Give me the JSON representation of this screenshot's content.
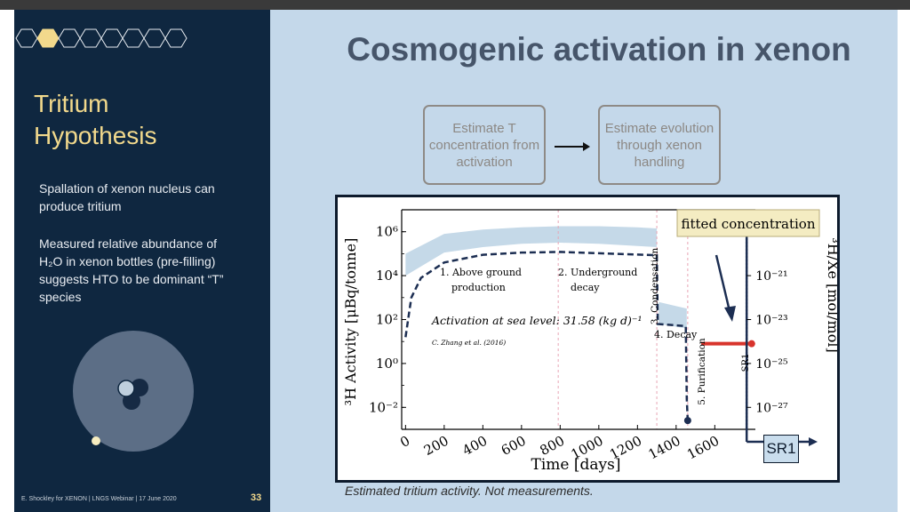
{
  "sidebar": {
    "title_line1": "Tritium",
    "title_line2": "Hypothesis",
    "para1": "Spallation of xenon nucleus can produce tritium",
    "para2": "Measured relative abundance of H₂O in xenon bottles (pre-filling) suggests HTO to be dominant “T” species",
    "footer": "E. Shockley for XENON | LNGS Webinar | 17 June 2020",
    "page_number": "33",
    "accent_color": "#f2d98c"
  },
  "main": {
    "title": "Cosmogenic activation in xenon",
    "flow": {
      "box1": "Estimate T concentration from activation",
      "box2": "Estimate evolution through xenon handling"
    },
    "caption": "Estimated tritium activity. Not measurements.",
    "sr1_label": "SR1"
  },
  "chart_data": {
    "type": "line",
    "xlabel": "Time [days]",
    "ylabel": "³H Activity [μBq/tonne]",
    "ylabel_right": "³H/Xe [mol/mol]",
    "xlim": [
      -20,
      1810
    ],
    "ylim_log10": [
      -3,
      7
    ],
    "y_scale": "log",
    "x_ticks": [
      0,
      200,
      400,
      600,
      800,
      1000,
      1200,
      1400,
      1600
    ],
    "y_ticks": [
      {
        "exp": -2,
        "label": "10⁻²"
      },
      {
        "exp": 0,
        "label": "10⁰"
      },
      {
        "exp": 2,
        "label": "10²"
      },
      {
        "exp": 4,
        "label": "10⁴"
      },
      {
        "exp": 6,
        "label": "10⁶"
      }
    ],
    "right_ticks": [
      {
        "exp": 4,
        "label": "10⁻²¹"
      },
      {
        "exp": 2,
        "label": "10⁻²³"
      },
      {
        "exp": 0,
        "label": "10⁻²⁵"
      },
      {
        "exp": -2,
        "label": "10⁻²⁷"
      }
    ],
    "phases": [
      {
        "x": 790,
        "color": "#e8a5b5"
      },
      {
        "x": 1300,
        "color": "#e8a5b5"
      },
      {
        "x": 1460,
        "color": "#e8a5b5"
      },
      {
        "x": 1765,
        "color": "#1c2e52"
      }
    ],
    "annotations": {
      "above_ground_1": "1. Above ground",
      "above_ground_2": "production",
      "underground_1": "2. Underground",
      "underground_2": "decay",
      "condensation": "3. Condensation",
      "decay": "4. Decay",
      "purification": "5. Purification",
      "sr1": "SR1",
      "activation": "Activation at sea level: 31.58 (kg d)⁻¹",
      "reference": "C. Zhang et al. (2016)",
      "fitted": "fitted concentration"
    },
    "series": [
      {
        "style": "dashed",
        "color": "#1c2e52",
        "points": [
          [
            0,
            1.2
          ],
          [
            30,
            3.0
          ],
          [
            80,
            3.9
          ],
          [
            200,
            4.6
          ],
          [
            400,
            4.95
          ],
          [
            600,
            5.05
          ],
          [
            800,
            5.08
          ],
          [
            1000,
            5.02
          ],
          [
            1200,
            4.96
          ],
          [
            1300,
            4.93
          ],
          [
            1305,
            1.8
          ],
          [
            1450,
            1.7
          ],
          [
            1455,
            -1.6
          ],
          [
            1460,
            -2.6
          ]
        ]
      },
      {
        "style": "band",
        "color": "#c5d9e8",
        "upper": [
          [
            0,
            5.0
          ],
          [
            200,
            5.9
          ],
          [
            400,
            6.1
          ],
          [
            600,
            6.2
          ],
          [
            800,
            6.25
          ],
          [
            1000,
            6.25
          ],
          [
            1200,
            6.2
          ],
          [
            1300,
            6.15
          ]
        ],
        "lower": [
          [
            0,
            4.0
          ],
          [
            200,
            5.05
          ],
          [
            400,
            5.3
          ],
          [
            600,
            5.45
          ],
          [
            800,
            5.5
          ],
          [
            1000,
            5.45
          ],
          [
            1200,
            5.35
          ],
          [
            1300,
            5.3
          ]
        ]
      },
      {
        "style": "band",
        "color": "#c5d9e8",
        "upper": [
          [
            1310,
            2.8
          ],
          [
            1455,
            2.5
          ]
        ],
        "lower": [
          [
            1310,
            1.8
          ],
          [
            1455,
            1.6
          ]
        ]
      },
      {
        "style": "solid",
        "color": "#d8342c",
        "points": [
          [
            1530,
            0.9
          ],
          [
            1800,
            0.9
          ]
        ]
      }
    ]
  }
}
